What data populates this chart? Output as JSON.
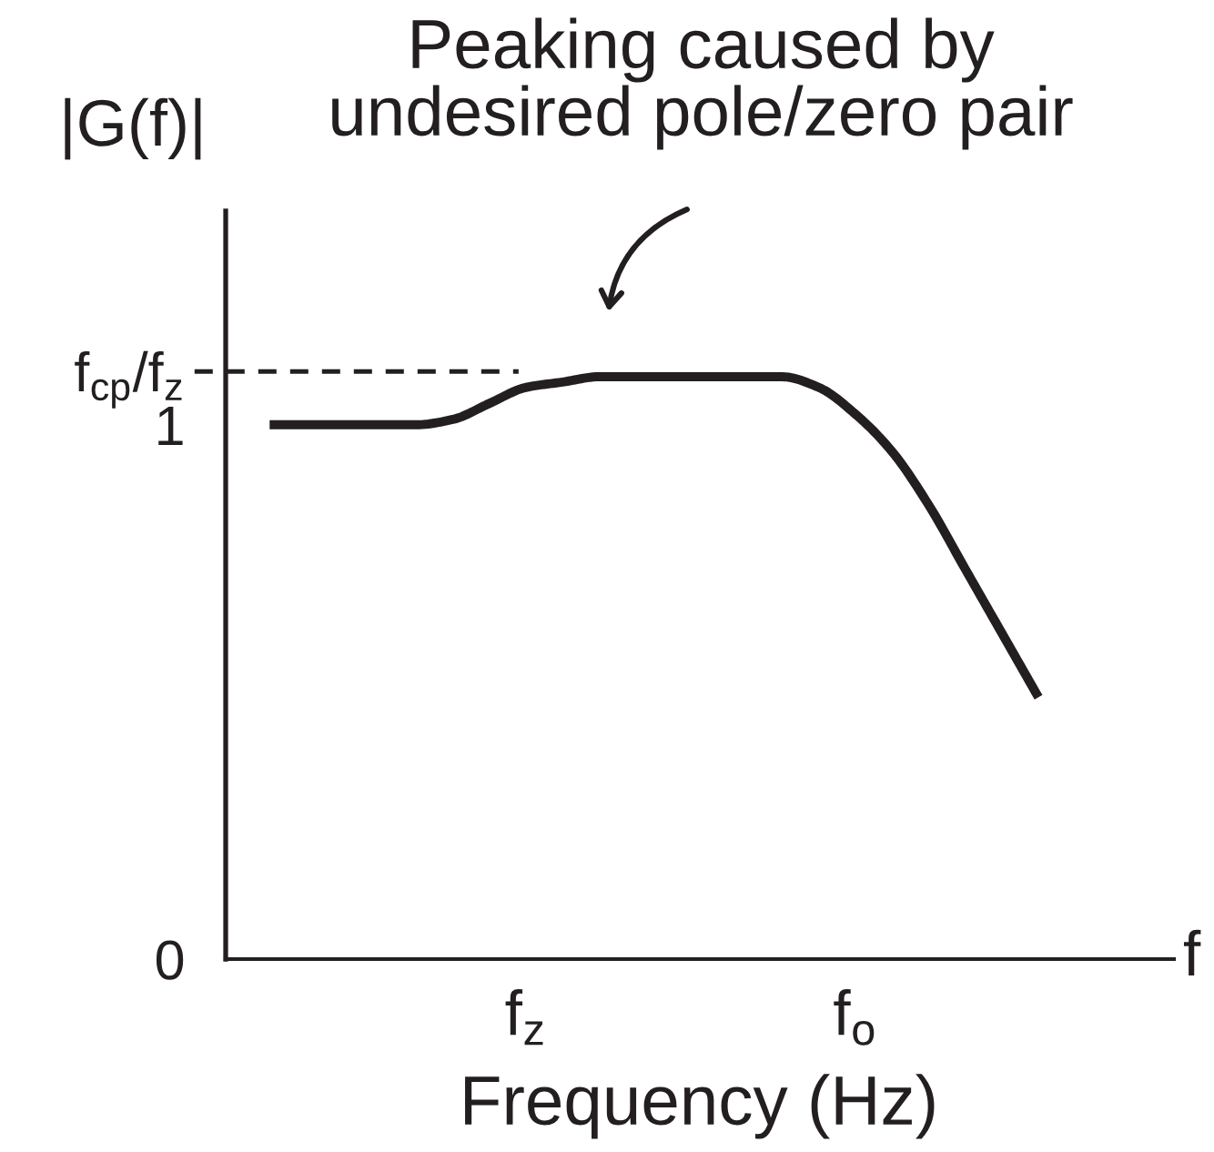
{
  "chart_data": {
    "type": "line",
    "annotations": [
      "Peaking caused by\nundesired pole/zero pair",
      "f"
    ],
    "ylabel": "|G(f)|",
    "xlabel": "Frequency (Hz)",
    "categories": [
      null,
      null,
      null,
      null,
      null,
      null,
      null,
      "f$_{z}$",
      null,
      null,
      null,
      null,
      null,
      null,
      null,
      null,
      "f$_{o}$",
      null,
      null,
      null,
      null,
      null
    ],
    "series": [
      {
        "color": "#231f20",
        "values": [
          1.0,
          1.0,
          1.0,
          1.0,
          1.0,
          1.01,
          1.04,
          1.07,
          1.08,
          1.09,
          1.09,
          1.09,
          1.09,
          1.09,
          1.09,
          1.07,
          1.02,
          0.95,
          0.85,
          0.73,
          0.61,
          0.49
        ]
      }
    ],
    "ylim": [
      0,
      1.4
    ],
    "yticks": [
      0,
      1,
      {
        "value": 1.1,
        "label": "f$_{cp}$/f$_{z}$"
      }
    ],
    "ref_lines": [
      {
        "axis": "y",
        "value": 1.1,
        "line_style": "dashed",
        "color": "#231f20"
      }
    ],
    "line_style": "solid"
  }
}
